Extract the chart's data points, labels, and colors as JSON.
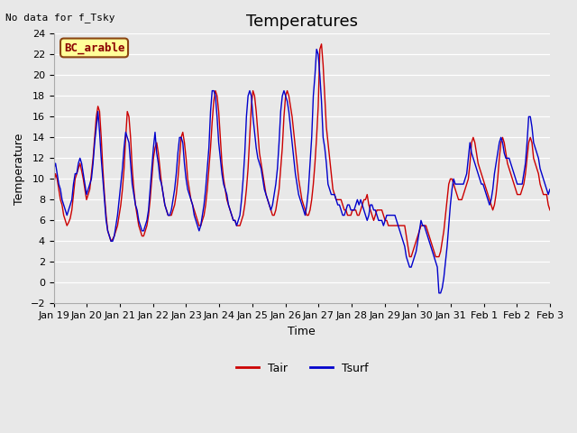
{
  "title": "Temperatures",
  "xlabel": "Time",
  "ylabel": "Temperature",
  "note": "No data for f_Tsky",
  "location_label": "BC_arable",
  "ylim": [
    -2,
    24
  ],
  "yticks": [
    -2,
    0,
    2,
    4,
    6,
    8,
    10,
    12,
    14,
    16,
    18,
    20,
    22,
    24
  ],
  "xtick_labels": [
    "Jan 19",
    "Jan 20",
    "Jan 21",
    "Jan 22",
    "Jan 23",
    "Jan 24",
    "Jan 25",
    "Jan 26",
    "Jan 27",
    "Jan 28",
    "Jan 29",
    "Jan 30",
    "Jan 31",
    "Feb 1",
    "Feb 2",
    "Feb 3"
  ],
  "line_color_tair": "#cc0000",
  "line_color_tsurf": "#0000cc",
  "legend_tair": "Tair",
  "legend_tsurf": "Tsurf",
  "background_color": "#e8e8e8",
  "location_box_color": "#ffff99",
  "location_box_edge": "#8b4513",
  "title_fontsize": 13,
  "axis_label_fontsize": 9,
  "tick_label_fontsize": 8,
  "tair": [
    9.5,
    10.5,
    10.0,
    9.0,
    8.0,
    7.5,
    6.5,
    6.0,
    5.5,
    5.8,
    6.2,
    7.0,
    8.5,
    10.0,
    10.5,
    11.0,
    11.5,
    10.8,
    10.0,
    9.0,
    8.0,
    8.5,
    9.0,
    10.5,
    12.0,
    14.0,
    16.0,
    17.0,
    16.5,
    14.0,
    11.0,
    8.5,
    6.5,
    5.0,
    4.5,
    4.0,
    4.2,
    4.5,
    5.0,
    5.5,
    6.5,
    7.5,
    9.0,
    11.0,
    14.0,
    16.5,
    16.0,
    14.0,
    11.0,
    9.0,
    7.5,
    6.5,
    5.5,
    5.0,
    4.5,
    4.5,
    5.0,
    5.5,
    6.5,
    8.0,
    10.0,
    12.0,
    13.0,
    13.5,
    12.5,
    11.0,
    9.5,
    8.5,
    7.5,
    7.0,
    6.5,
    6.5,
    6.5,
    7.0,
    7.5,
    8.5,
    10.0,
    12.0,
    14.0,
    14.5,
    13.5,
    12.0,
    10.0,
    9.0,
    8.0,
    7.5,
    7.0,
    6.5,
    6.0,
    5.5,
    5.5,
    6.0,
    6.5,
    7.5,
    9.0,
    11.0,
    13.0,
    15.5,
    17.5,
    18.5,
    18.0,
    16.5,
    14.0,
    11.5,
    10.0,
    9.0,
    8.0,
    7.5,
    7.0,
    6.5,
    6.0,
    6.0,
    5.5,
    5.5,
    5.5,
    6.0,
    6.5,
    7.5,
    9.0,
    11.0,
    14.0,
    17.0,
    18.5,
    18.0,
    16.5,
    14.5,
    12.5,
    11.5,
    10.5,
    9.5,
    8.5,
    8.0,
    7.5,
    7.0,
    6.5,
    6.5,
    7.0,
    8.0,
    9.0,
    11.0,
    13.0,
    16.0,
    18.0,
    18.5,
    18.0,
    17.0,
    16.0,
    14.5,
    13.0,
    11.5,
    10.0,
    9.0,
    8.0,
    7.5,
    7.0,
    6.5,
    6.5,
    7.0,
    8.0,
    9.5,
    11.5,
    14.0,
    17.0,
    22.5,
    23.0,
    21.0,
    18.0,
    15.0,
    13.5,
    12.0,
    10.5,
    9.0,
    8.5,
    8.0,
    8.0,
    8.0,
    8.0,
    7.5,
    7.0,
    7.0,
    6.5,
    6.5,
    6.5,
    7.0,
    7.0,
    7.0,
    6.5,
    6.5,
    7.0,
    7.5,
    8.0,
    8.0,
    8.5,
    7.5,
    7.0,
    6.5,
    6.0,
    6.5,
    7.0,
    7.0,
    7.0,
    7.0,
    6.5,
    6.0,
    6.0,
    5.5,
    5.5,
    5.5,
    5.5,
    5.5,
    5.5,
    5.5,
    5.5,
    5.5,
    5.5,
    5.5,
    4.5,
    3.5,
    2.5,
    2.5,
    3.0,
    3.5,
    4.0,
    4.5,
    5.0,
    5.5,
    5.5,
    5.5,
    5.5,
    5.0,
    4.5,
    4.0,
    3.5,
    3.0,
    2.5,
    2.5,
    2.5,
    3.0,
    4.0,
    5.0,
    6.5,
    8.0,
    9.5,
    10.0,
    10.0,
    9.5,
    9.0,
    8.5,
    8.0,
    8.0,
    8.0,
    8.5,
    9.0,
    9.5,
    10.0,
    11.5,
    13.5,
    14.0,
    13.5,
    12.5,
    11.5,
    11.0,
    10.5,
    10.0,
    9.5,
    9.0,
    8.5,
    8.0,
    7.5,
    7.0,
    7.5,
    8.5,
    10.0,
    12.0,
    13.5,
    14.0,
    13.5,
    12.5,
    11.5,
    11.0,
    10.5,
    10.0,
    9.5,
    9.0,
    8.5,
    8.5,
    8.5,
    9.0,
    9.5,
    10.5,
    12.0,
    13.5,
    14.0,
    13.5,
    12.0,
    11.5,
    11.0,
    10.5,
    9.5,
    9.0,
    8.5,
    8.5,
    8.5,
    7.5,
    7.0
  ],
  "tsurf": [
    11.0,
    11.5,
    10.5,
    9.5,
    9.0,
    8.0,
    7.5,
    7.0,
    6.5,
    7.0,
    7.5,
    8.0,
    9.5,
    10.5,
    10.5,
    11.5,
    12.0,
    11.5,
    10.5,
    9.5,
    8.5,
    9.0,
    9.5,
    10.0,
    11.5,
    13.5,
    15.0,
    16.5,
    14.5,
    12.0,
    10.0,
    8.0,
    6.0,
    5.0,
    4.5,
    4.0,
    4.0,
    4.5,
    5.5,
    6.5,
    8.0,
    9.5,
    11.0,
    13.0,
    14.5,
    14.0,
    13.5,
    11.5,
    9.5,
    8.5,
    7.5,
    7.0,
    6.0,
    5.5,
    5.0,
    5.0,
    5.5,
    6.0,
    7.0,
    9.0,
    11.0,
    13.0,
    14.5,
    12.5,
    11.5,
    10.0,
    9.5,
    8.5,
    7.5,
    7.0,
    6.5,
    6.5,
    7.0,
    8.0,
    9.0,
    10.5,
    12.5,
    14.0,
    14.0,
    13.5,
    11.5,
    10.0,
    9.0,
    8.5,
    8.0,
    7.5,
    6.5,
    6.0,
    5.5,
    5.0,
    5.5,
    6.5,
    7.5,
    9.0,
    11.0,
    13.0,
    16.5,
    18.5,
    18.5,
    18.0,
    16.0,
    13.5,
    12.0,
    10.5,
    9.5,
    9.0,
    8.5,
    7.5,
    7.0,
    6.5,
    6.0,
    6.0,
    5.5,
    6.0,
    6.5,
    8.0,
    10.0,
    12.5,
    16.0,
    18.0,
    18.5,
    18.0,
    16.0,
    14.5,
    13.0,
    12.0,
    11.5,
    11.0,
    10.0,
    9.0,
    8.5,
    8.0,
    7.5,
    7.0,
    7.5,
    8.5,
    9.5,
    11.0,
    13.5,
    16.5,
    18.0,
    18.5,
    18.0,
    17.5,
    16.5,
    15.0,
    13.5,
    12.0,
    10.5,
    9.5,
    8.5,
    8.0,
    7.5,
    7.0,
    6.5,
    7.5,
    9.0,
    11.5,
    14.0,
    18.0,
    20.0,
    22.5,
    22.0,
    20.0,
    17.5,
    14.0,
    13.0,
    11.5,
    9.5,
    9.0,
    8.5,
    8.5,
    8.5,
    8.0,
    7.5,
    7.5,
    7.0,
    6.5,
    6.5,
    7.0,
    7.5,
    7.5,
    7.0,
    7.0,
    7.0,
    7.5,
    8.0,
    7.5,
    8.0,
    7.5,
    7.0,
    6.5,
    6.0,
    6.5,
    7.5,
    7.5,
    7.0,
    7.0,
    6.5,
    6.0,
    6.0,
    6.0,
    5.5,
    6.0,
    6.5,
    6.5,
    6.5,
    6.5,
    6.5,
    6.5,
    6.0,
    5.5,
    5.0,
    4.5,
    4.0,
    3.5,
    2.5,
    2.0,
    1.5,
    1.5,
    2.0,
    2.5,
    3.0,
    4.0,
    5.0,
    6.0,
    5.5,
    5.5,
    5.0,
    4.5,
    4.0,
    3.5,
    3.0,
    2.5,
    2.0,
    1.5,
    -1.0,
    -1.0,
    -0.5,
    0.5,
    2.0,
    3.5,
    5.5,
    7.5,
    9.0,
    10.0,
    9.5,
    9.5,
    9.5,
    9.5,
    9.5,
    9.5,
    10.0,
    10.5,
    12.0,
    13.5,
    12.5,
    12.0,
    11.5,
    11.0,
    10.5,
    10.0,
    9.5,
    9.5,
    9.0,
    8.5,
    8.0,
    7.5,
    8.0,
    9.0,
    10.5,
    11.5,
    12.5,
    13.5,
    14.0,
    13.5,
    12.5,
    12.0,
    12.0,
    12.0,
    11.5,
    11.0,
    10.5,
    10.0,
    9.5,
    9.5,
    9.5,
    9.5,
    10.5,
    11.5,
    13.5,
    16.0,
    16.0,
    15.0,
    13.5,
    13.0,
    12.5,
    12.0,
    11.0,
    10.5,
    10.0,
    9.5,
    9.0,
    8.5,
    9.0
  ]
}
